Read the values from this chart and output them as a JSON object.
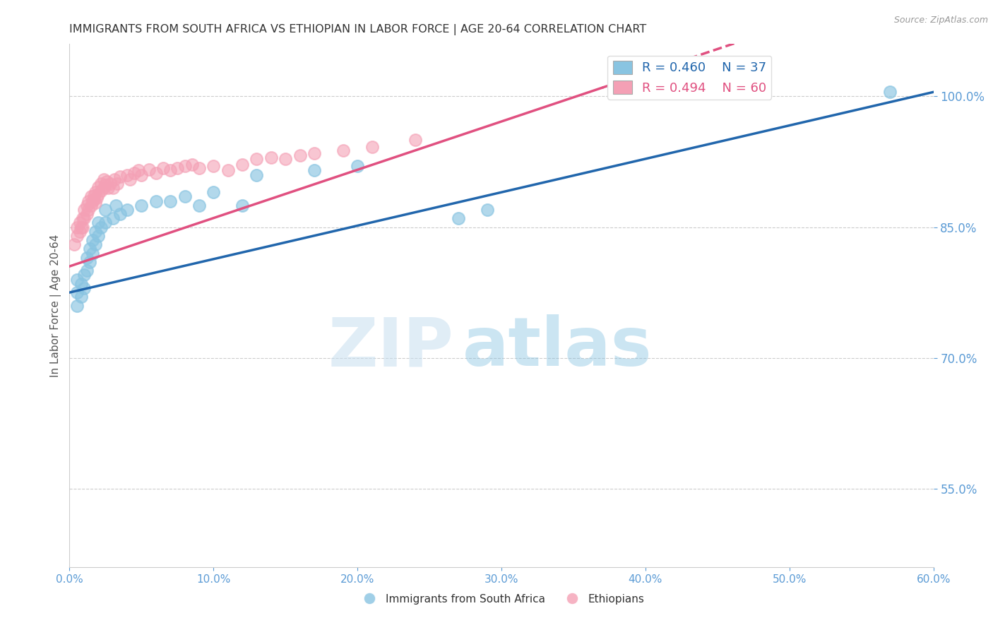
{
  "title": "IMMIGRANTS FROM SOUTH AFRICA VS ETHIOPIAN IN LABOR FORCE | AGE 20-64 CORRELATION CHART",
  "source": "Source: ZipAtlas.com",
  "ylabel": "In Labor Force | Age 20-64",
  "xmin": 0.0,
  "xmax": 0.6,
  "ymin": 0.46,
  "ymax": 1.06,
  "yticks": [
    0.55,
    0.7,
    0.85,
    1.0
  ],
  "ytick_labels": [
    "55.0%",
    "70.0%",
    "85.0%",
    "100.0%"
  ],
  "xticks": [
    0.0,
    0.1,
    0.2,
    0.3,
    0.4,
    0.5,
    0.6
  ],
  "xtick_labels": [
    "0.0%",
    "10.0%",
    "20.0%",
    "30.0%",
    "40.0%",
    "50.0%",
    "60.0%"
  ],
  "color_sa": "#89c4e1",
  "color_eth": "#f4a0b5",
  "legend_r_sa": "R = 0.460",
  "legend_n_sa": "N = 37",
  "legend_r_eth": "R = 0.494",
  "legend_n_eth": "N = 60",
  "trendline_sa_color": "#2166ac",
  "trendline_eth_color": "#e05080",
  "sa_x": [
    0.005,
    0.005,
    0.005,
    0.008,
    0.008,
    0.01,
    0.01,
    0.012,
    0.012,
    0.014,
    0.014,
    0.016,
    0.016,
    0.018,
    0.018,
    0.02,
    0.02,
    0.022,
    0.025,
    0.025,
    0.03,
    0.032,
    0.035,
    0.04,
    0.05,
    0.06,
    0.07,
    0.08,
    0.09,
    0.1,
    0.12,
    0.13,
    0.17,
    0.2,
    0.27,
    0.29,
    0.57
  ],
  "sa_y": [
    0.76,
    0.775,
    0.79,
    0.77,
    0.785,
    0.78,
    0.795,
    0.8,
    0.815,
    0.81,
    0.825,
    0.82,
    0.835,
    0.83,
    0.845,
    0.84,
    0.855,
    0.85,
    0.855,
    0.87,
    0.86,
    0.875,
    0.865,
    0.87,
    0.875,
    0.88,
    0.88,
    0.885,
    0.875,
    0.89,
    0.875,
    0.91,
    0.915,
    0.92,
    0.86,
    0.87,
    1.005
  ],
  "eth_x": [
    0.003,
    0.005,
    0.005,
    0.007,
    0.007,
    0.008,
    0.009,
    0.009,
    0.01,
    0.01,
    0.012,
    0.012,
    0.013,
    0.013,
    0.015,
    0.015,
    0.016,
    0.017,
    0.017,
    0.018,
    0.018,
    0.019,
    0.02,
    0.02,
    0.022,
    0.022,
    0.024,
    0.024,
    0.025,
    0.026,
    0.027,
    0.028,
    0.03,
    0.031,
    0.033,
    0.035,
    0.04,
    0.042,
    0.045,
    0.048,
    0.05,
    0.055,
    0.06,
    0.065,
    0.07,
    0.075,
    0.08,
    0.085,
    0.09,
    0.1,
    0.11,
    0.12,
    0.13,
    0.14,
    0.15,
    0.16,
    0.17,
    0.19,
    0.21,
    0.24
  ],
  "eth_y": [
    0.83,
    0.84,
    0.85,
    0.845,
    0.855,
    0.85,
    0.85,
    0.86,
    0.86,
    0.87,
    0.865,
    0.875,
    0.87,
    0.88,
    0.875,
    0.885,
    0.88,
    0.882,
    0.886,
    0.878,
    0.89,
    0.884,
    0.888,
    0.896,
    0.892,
    0.9,
    0.895,
    0.905,
    0.898,
    0.902,
    0.895,
    0.9,
    0.895,
    0.905,
    0.9,
    0.908,
    0.91,
    0.905,
    0.912,
    0.915,
    0.91,
    0.916,
    0.912,
    0.918,
    0.915,
    0.918,
    0.92,
    0.922,
    0.918,
    0.92,
    0.915,
    0.922,
    0.928,
    0.93,
    0.928,
    0.932,
    0.935,
    0.938,
    0.942,
    0.95
  ],
  "watermark_zip": "ZIP",
  "watermark_atlas": "atlas",
  "background_color": "#ffffff",
  "grid_color": "#cccccc",
  "axis_color": "#5b9bd5",
  "title_color": "#333333"
}
